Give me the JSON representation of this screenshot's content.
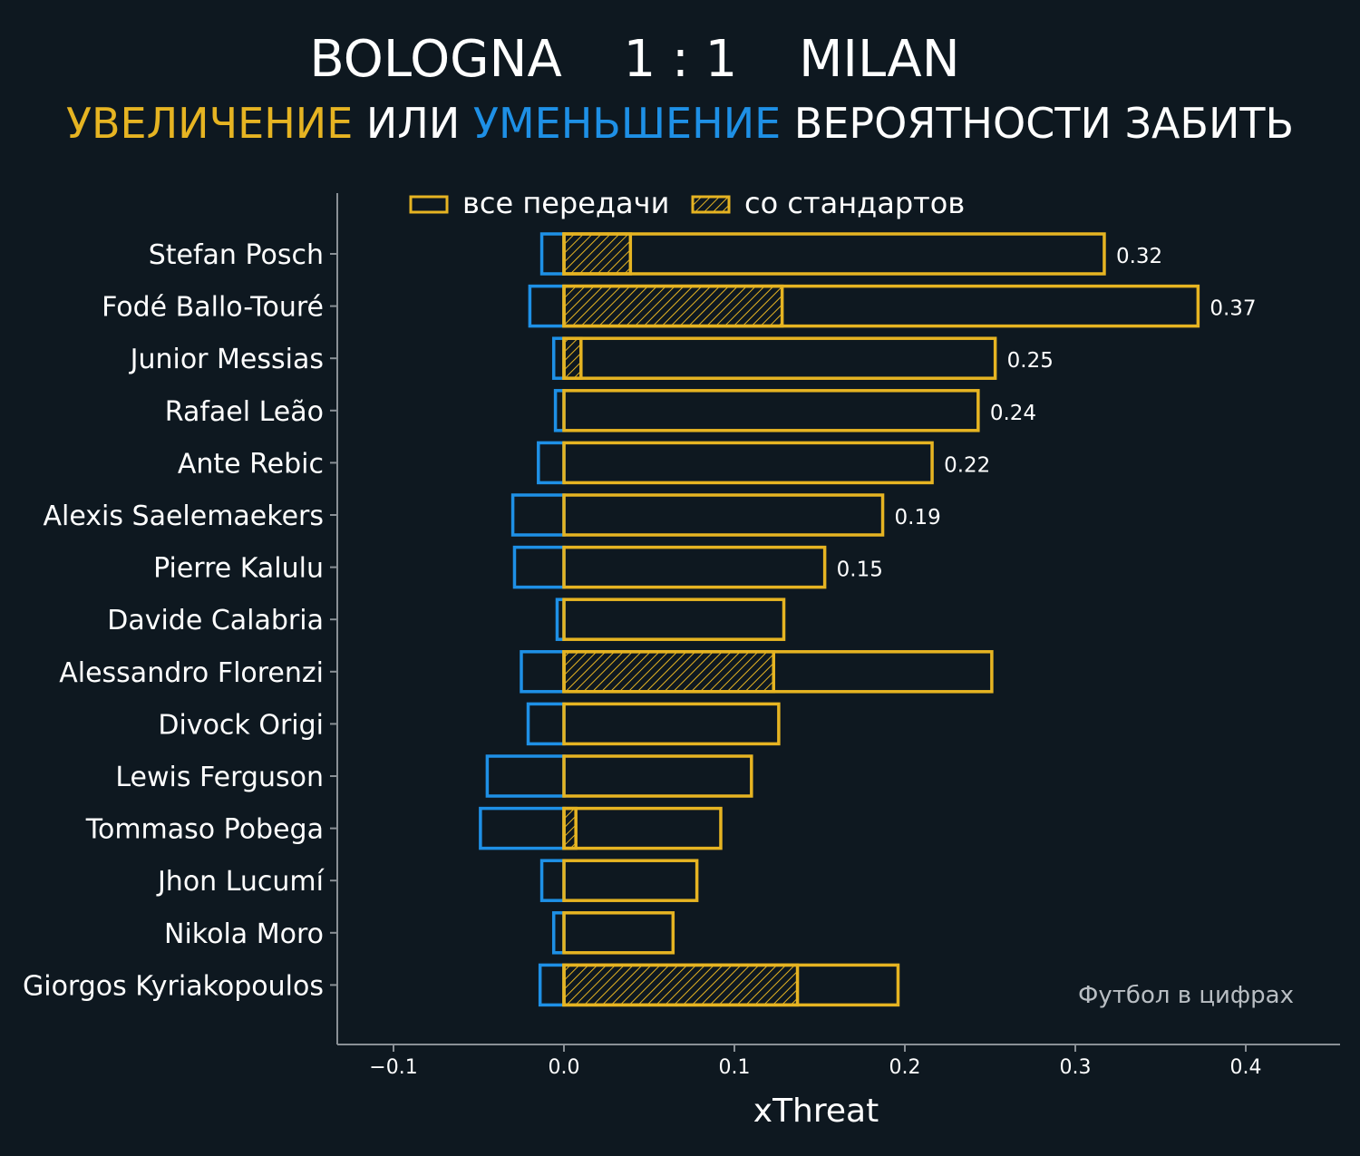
{
  "header": {
    "home_team": "BOLOGNA",
    "score": "1 : 1",
    "away_team": "MILAN",
    "subtitle_part1": "УВЕЛИЧЕНИЕ",
    "subtitle_part2": " ИЛИ ",
    "subtitle_part3": "УМЕНЬШЕНИЕ",
    "subtitle_part4": " ВЕРОЯТНОСТИ ЗАБИТЬ"
  },
  "legend": {
    "all_passes": "все передачи",
    "set_pieces": "со стандартов"
  },
  "watermark": "Футбол в цифрах",
  "colors": {
    "background": "#0e1820",
    "increase": "#e6b422",
    "decrease": "#1e90e6",
    "axis": "#8a9096",
    "text": "#ffffff"
  },
  "chart_data": {
    "type": "bar",
    "orientation": "horizontal",
    "xlabel": "xThreat",
    "xlim": [
      -0.133,
      0.455
    ],
    "xticks": [
      -0.1,
      0.0,
      0.1,
      0.2,
      0.3,
      0.4
    ],
    "xtick_labels": [
      "−0.1",
      "0.0",
      "0.1",
      "0.2",
      "0.3",
      "0.4"
    ],
    "categories": [
      "Stefan Posch",
      "Fodé Ballo-Touré",
      "Junior Messias",
      "Rafael Leão",
      "Ante Rebic",
      "Alexis Saelemaekers",
      "Pierre Kalulu",
      "Davide Calabria",
      "Alessandro Florenzi",
      "Divock Origi",
      "Lewis Ferguson",
      "Tommaso Pobega",
      "Jhon Lucumí",
      "Nikola Moro",
      "Giorgos Kyriakopoulos"
    ],
    "series": [
      {
        "name": "все передачи",
        "positive": [
          0.317,
          0.372,
          0.253,
          0.243,
          0.216,
          0.187,
          0.153,
          0.129,
          0.251,
          0.126,
          0.11,
          0.092,
          0.078,
          0.064,
          0.196
        ],
        "negative": [
          -0.013,
          -0.02,
          -0.006,
          -0.005,
          -0.015,
          -0.03,
          -0.029,
          -0.004,
          -0.025,
          -0.021,
          -0.045,
          -0.049,
          -0.013,
          -0.006,
          -0.014
        ]
      },
      {
        "name": "со стандартов",
        "positive": [
          0.039,
          0.128,
          0.01,
          0,
          0,
          0,
          0,
          0,
          0.123,
          0,
          0,
          0.007,
          0,
          0,
          0.137
        ]
      }
    ],
    "value_labels": [
      "0.32",
      "0.37",
      "0.25",
      "0.24",
      "0.22",
      "0.19",
      "0.15",
      "",
      "",
      "",
      "",
      "",
      "",
      "",
      ""
    ]
  }
}
